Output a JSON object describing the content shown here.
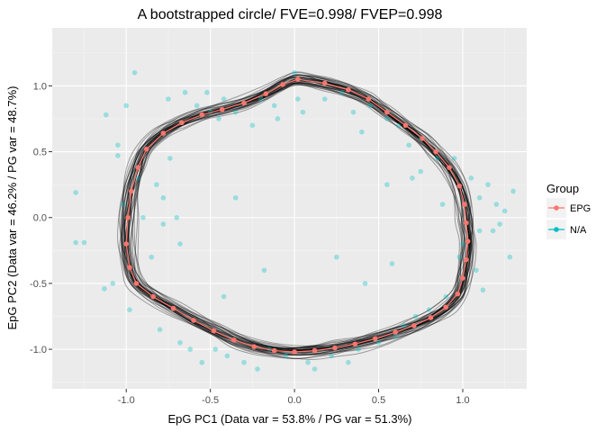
{
  "chart_data": {
    "type": "scatter",
    "title": "A bootstrapped circle/ FVE=0.998/ FVEP=0.998",
    "xlabel": "EpG PC1 (Data var = 53.8% / PG var = 51.3%)",
    "ylabel": "EpG PC2 (Data var = 46.2% / PG var = 48.7%)",
    "xlim": [
      -1.44,
      1.38
    ],
    "ylim": [
      -1.3,
      1.44
    ],
    "x_ticks": [
      -1.0,
      -0.5,
      0.0,
      0.5,
      1.0
    ],
    "x_tick_labels": [
      "-1.0",
      "-0.5",
      "0.0",
      "0.5",
      "1.0"
    ],
    "y_ticks": [
      -1.0,
      -0.5,
      0.0,
      0.5,
      1.0
    ],
    "y_tick_labels": [
      "-1.0",
      "-0.5",
      "0.0",
      "0.5",
      "1.0"
    ],
    "grid": true,
    "legend": {
      "title": "Group",
      "placement": "right",
      "entries": [
        {
          "label": "EPG",
          "color": "#F8766D"
        },
        {
          "label": "N/A",
          "color": "#00BFC4"
        }
      ]
    },
    "colors": {
      "panel": "#EBEBEB",
      "grid_major": "#FFFFFF",
      "grid_minor": "#F5F5F5",
      "epg": "#F8766D",
      "data_points": "#00BFC4",
      "bootstrap_curves": "#000000"
    },
    "series": [
      {
        "name": "EPG",
        "x": [
          0.02,
          0.18,
          0.32,
          0.44,
          0.55,
          0.66,
          0.76,
          0.84,
          0.92,
          0.98,
          1.01,
          1.02,
          1.03,
          1.02,
          1.0,
          0.97,
          0.9,
          0.81,
          0.71,
          0.6,
          0.48,
          0.36,
          0.24,
          0.12,
          0.0,
          -0.12,
          -0.24,
          -0.36,
          -0.48,
          -0.6,
          -0.72,
          -0.84,
          -0.94,
          -0.98,
          -1.0,
          -0.99,
          -0.97,
          -0.93,
          -0.88,
          -0.78,
          -0.67,
          -0.55,
          -0.43,
          -0.3,
          -0.17,
          -0.07
        ],
        "y": [
          1.05,
          1.02,
          0.97,
          0.9,
          0.8,
          0.7,
          0.6,
          0.5,
          0.38,
          0.24,
          0.1,
          -0.04,
          -0.18,
          -0.32,
          -0.46,
          -0.58,
          -0.68,
          -0.76,
          -0.82,
          -0.87,
          -0.92,
          -0.96,
          -0.99,
          -1.01,
          -1.02,
          -1.01,
          -0.98,
          -0.93,
          -0.86,
          -0.78,
          -0.69,
          -0.6,
          -0.5,
          -0.38,
          -0.2,
          0.0,
          0.2,
          0.38,
          0.52,
          0.64,
          0.72,
          0.78,
          0.82,
          0.87,
          0.94,
          1.01
        ]
      },
      {
        "name": "N/A",
        "x": [
          -1.3,
          -1.3,
          -1.25,
          -1.13,
          -1.12,
          -1.08,
          -1.05,
          -1.05,
          -1.02,
          -1.0,
          -0.98,
          -0.95,
          -0.93,
          -0.85,
          -0.82,
          -0.8,
          -0.78,
          -0.78,
          -0.75,
          -0.74,
          -0.7,
          -0.68,
          -0.65,
          -0.62,
          -0.58,
          -0.55,
          -0.52,
          -0.5,
          -0.47,
          -0.45,
          -0.42,
          -0.4,
          -0.35,
          -0.3,
          -0.25,
          -0.22,
          -0.2,
          -0.15,
          -0.12,
          -0.1,
          -0.05,
          0.0,
          0.02,
          0.05,
          0.08,
          0.12,
          0.18,
          0.22,
          0.28,
          0.32,
          0.35,
          0.38,
          0.4,
          0.45,
          0.5,
          0.55,
          0.6,
          0.62,
          0.65,
          0.68,
          0.72,
          0.75,
          0.8,
          0.85,
          0.9,
          0.95,
          1.0,
          1.05,
          1.08,
          1.1,
          1.12,
          1.15,
          1.18,
          1.2,
          1.22,
          1.25,
          1.28,
          1.3,
          0.55,
          0.75,
          0.98,
          -0.68,
          -0.35,
          -0.9,
          0.42,
          0.88,
          -0.42,
          0.25,
          -0.18,
          0.7,
          1.1,
          0.58
        ],
        "y": [
          0.19,
          -0.19,
          -0.19,
          -0.54,
          0.78,
          -0.5,
          0.47,
          0.55,
          0.1,
          0.85,
          -0.7,
          1.1,
          0.3,
          -0.3,
          0.25,
          -0.85,
          0.15,
          -0.05,
          0.9,
          0.45,
          0.0,
          -0.95,
          0.95,
          -1.0,
          0.85,
          -1.1,
          0.95,
          0.8,
          -1.0,
          0.75,
          0.9,
          -1.05,
          0.8,
          -1.1,
          0.7,
          -1.15,
          0.9,
          -1.0,
          0.85,
          0.75,
          -1.05,
          1.1,
          0.9,
          0.8,
          -1.1,
          -1.15,
          0.9,
          -1.05,
          0.95,
          -1.1,
          0.8,
          -1.0,
          0.65,
          0.85,
          -0.95,
          0.75,
          -0.9,
          0.7,
          -0.82,
          0.55,
          -0.75,
          0.6,
          -0.7,
          0.45,
          -0.6,
          0.45,
          -0.2,
          0.3,
          -0.4,
          0.15,
          -0.55,
          0.25,
          -0.1,
          0.1,
          -0.05,
          0.05,
          -0.3,
          0.2,
          0.25,
          0.35,
          -0.3,
          -0.2,
          0.15,
          0.0,
          -0.5,
          0.1,
          -0.6,
          -0.3,
          -0.4,
          0.3,
          -0.1,
          -0.35
        ]
      }
    ]
  }
}
